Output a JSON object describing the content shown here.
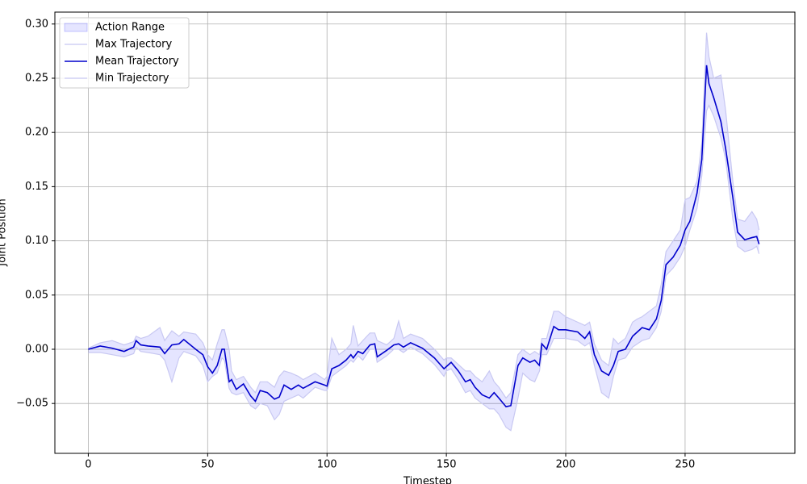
{
  "chart_data": {
    "type": "line",
    "xlabel": "Timestep",
    "ylabel": "Joint Position",
    "x": [
      0,
      5,
      10,
      15,
      19,
      20,
      22,
      25,
      30,
      32,
      35,
      38,
      40,
      45,
      48,
      50,
      52,
      54,
      56,
      57,
      59,
      60,
      62,
      65,
      68,
      70,
      72,
      75,
      78,
      80,
      82,
      85,
      88,
      90,
      95,
      99,
      100,
      102,
      105,
      108,
      110,
      111,
      113,
      115,
      118,
      120,
      121,
      125,
      128,
      130,
      132,
      135,
      140,
      145,
      149,
      150,
      152,
      155,
      158,
      160,
      162,
      165,
      168,
      170,
      172,
      175,
      177,
      180,
      182,
      185,
      187,
      189,
      190,
      192,
      195,
      197,
      200,
      205,
      208,
      210,
      212,
      215,
      218,
      220,
      222,
      225,
      228,
      230,
      232,
      235,
      238,
      240,
      242,
      245,
      248,
      250,
      252,
      255,
      257,
      259,
      260,
      262,
      265,
      267,
      270,
      272,
      275,
      278,
      280,
      281
    ],
    "band": {
      "name": "Action Range",
      "color": "#0000ff",
      "opacity": 0.1
    },
    "series": [
      {
        "name": "Max Trajectory",
        "color": "#c8c8f2",
        "values": [
          0.001,
          0.006,
          0.008,
          0.004,
          0.007,
          0.012,
          0.01,
          0.012,
          0.02,
          0.008,
          0.017,
          0.012,
          0.016,
          0.014,
          0.006,
          -0.005,
          -0.01,
          0.005,
          0.018,
          0.018,
          0.0,
          -0.02,
          -0.028,
          -0.025,
          -0.035,
          -0.04,
          -0.03,
          -0.03,
          -0.035,
          -0.025,
          -0.02,
          -0.022,
          -0.025,
          -0.028,
          -0.022,
          -0.028,
          -0.025,
          0.01,
          -0.005,
          0.0,
          0.005,
          0.022,
          0.003,
          0.008,
          0.015,
          0.015,
          0.008,
          0.004,
          0.01,
          0.026,
          0.01,
          0.014,
          0.01,
          0.0,
          -0.01,
          -0.008,
          -0.008,
          -0.014,
          -0.02,
          -0.02,
          -0.025,
          -0.03,
          -0.02,
          -0.03,
          -0.035,
          -0.045,
          -0.04,
          -0.005,
          0.0,
          -0.005,
          -0.002,
          -0.005,
          0.01,
          0.01,
          0.035,
          0.035,
          0.03,
          0.025,
          0.022,
          0.025,
          0.005,
          -0.01,
          -0.015,
          0.01,
          0.005,
          0.01,
          0.025,
          0.028,
          0.03,
          0.035,
          0.04,
          0.06,
          0.09,
          0.1,
          0.11,
          0.138,
          0.14,
          0.155,
          0.19,
          0.292,
          0.27,
          0.25,
          0.253,
          0.22,
          0.155,
          0.12,
          0.118,
          0.127,
          0.12,
          0.11
        ]
      },
      {
        "name": "Mean Trajectory",
        "color": "#0000cc",
        "values": [
          0,
          0.003,
          0.001,
          -0.002,
          0.002,
          0.008,
          0.004,
          0.003,
          0.002,
          -0.004,
          0.004,
          0.005,
          0.009,
          0.0,
          -0.005,
          -0.016,
          -0.022,
          -0.015,
          0.0,
          0.0,
          -0.03,
          -0.028,
          -0.037,
          -0.032,
          -0.043,
          -0.048,
          -0.038,
          -0.04,
          -0.046,
          -0.044,
          -0.033,
          -0.037,
          -0.033,
          -0.036,
          -0.03,
          -0.033,
          -0.034,
          -0.018,
          -0.015,
          -0.01,
          -0.005,
          -0.008,
          -0.002,
          -0.004,
          0.004,
          0.005,
          -0.007,
          -0.001,
          0.004,
          0.005,
          0.002,
          0.006,
          0.001,
          -0.008,
          -0.018,
          -0.016,
          -0.012,
          -0.02,
          -0.03,
          -0.028,
          -0.035,
          -0.042,
          -0.045,
          -0.04,
          -0.045,
          -0.053,
          -0.052,
          -0.015,
          -0.008,
          -0.012,
          -0.01,
          -0.015,
          0.005,
          0.0,
          0.021,
          0.018,
          0.018,
          0.016,
          0.01,
          0.016,
          -0.005,
          -0.02,
          -0.024,
          -0.015,
          -0.002,
          0.0,
          0.012,
          0.016,
          0.02,
          0.018,
          0.028,
          0.045,
          0.078,
          0.085,
          0.096,
          0.11,
          0.118,
          0.144,
          0.175,
          0.262,
          0.245,
          0.232,
          0.21,
          0.185,
          0.14,
          0.108,
          0.101,
          0.103,
          0.104,
          0.097
        ]
      },
      {
        "name": "Min Trajectory",
        "color": "#c8c8f2",
        "values": [
          -0.003,
          -0.003,
          -0.005,
          -0.007,
          -0.004,
          0.002,
          -0.002,
          -0.003,
          -0.005,
          -0.01,
          -0.03,
          -0.008,
          -0.002,
          -0.006,
          -0.015,
          -0.03,
          -0.025,
          -0.022,
          -0.008,
          -0.01,
          -0.036,
          -0.04,
          -0.042,
          -0.04,
          -0.052,
          -0.055,
          -0.05,
          -0.052,
          -0.065,
          -0.06,
          -0.048,
          -0.045,
          -0.042,
          -0.045,
          -0.035,
          -0.038,
          -0.038,
          -0.025,
          -0.02,
          -0.015,
          -0.01,
          -0.012,
          -0.006,
          -0.01,
          0.0,
          0.0,
          -0.012,
          -0.006,
          0.0,
          0.0,
          -0.003,
          0.002,
          -0.004,
          -0.014,
          -0.025,
          -0.02,
          -0.018,
          -0.028,
          -0.04,
          -0.038,
          -0.045,
          -0.05,
          -0.055,
          -0.055,
          -0.06,
          -0.072,
          -0.075,
          -0.045,
          -0.022,
          -0.028,
          -0.03,
          -0.02,
          -0.005,
          -0.005,
          0.01,
          0.01,
          0.01,
          0.008,
          0.003,
          0.006,
          -0.015,
          -0.04,
          -0.045,
          -0.025,
          -0.01,
          -0.008,
          0.002,
          0.005,
          0.008,
          0.01,
          0.02,
          0.035,
          0.068,
          0.075,
          0.085,
          0.095,
          0.11,
          0.13,
          0.16,
          0.22,
          0.225,
          0.215,
          0.195,
          0.175,
          0.12,
          0.095,
          0.09,
          0.092,
          0.095,
          0.088
        ]
      }
    ],
    "xlim": [
      -14,
      296
    ],
    "ylim": [
      -0.096,
      0.311
    ],
    "xticks": [
      0,
      50,
      100,
      150,
      200,
      250
    ],
    "yticks": [
      {
        "value": -0.05,
        "label": "−0.05"
      },
      {
        "value": 0,
        "label": "0.00"
      },
      0.05,
      {
        "value": 0.1,
        "label": "0.10"
      },
      0.15,
      {
        "value": 0.2,
        "label": "0.20"
      },
      0.25,
      {
        "value": 0.3,
        "label": "0.30"
      }
    ],
    "grid": true,
    "legend": "upper left"
  }
}
